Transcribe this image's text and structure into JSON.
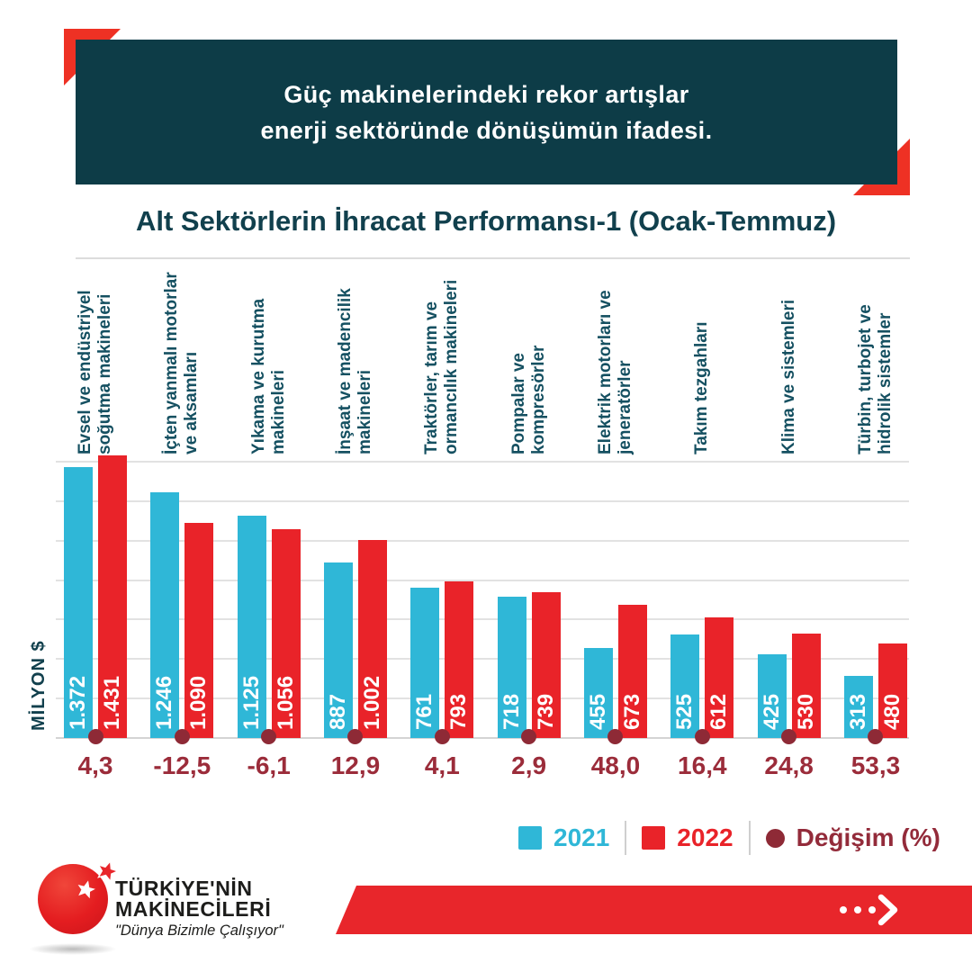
{
  "header": {
    "line1": "Güç makinelerindeki rekor artışlar",
    "line2": "enerji sektöründe dönüşümün ifadesi."
  },
  "chart_data": {
    "type": "bar",
    "title": "Alt Sektörlerin İhracat Performansı-1 (Ocak-Temmuz)",
    "ylabel": "MİLYON $",
    "ylim": [
      0,
      1400
    ],
    "grid_step": 200,
    "grid": true,
    "legend_position": "bottom-right",
    "categories": [
      [
        "Evsel ve endüstriyel",
        "soğutma makineleri"
      ],
      [
        "İçten yanmalı motorlar",
        "ve aksamları"
      ],
      [
        "Yıkama ve kurutma",
        "makineleri"
      ],
      [
        "İnşaat ve madencilik",
        "makineleri"
      ],
      [
        "Traktörler, tarım ve",
        "ormancılık makineleri"
      ],
      [
        "Pompalar ve",
        "kompresörler"
      ],
      [
        "Elektrik motorları ve",
        "jeneratörler"
      ],
      [
        "Takım tezgahları"
      ],
      [
        "Klima ve sistemleri"
      ],
      [
        "Türbin, turbojet ve",
        "hidrolik sistemler"
      ]
    ],
    "series": [
      {
        "name": "2021",
        "color": "#2fb7d7",
        "values": [
          1372,
          1246,
          1125,
          887,
          761,
          718,
          455,
          525,
          425,
          313
        ],
        "labels": [
          "1.372",
          "1.246",
          "1.125",
          "887",
          "761",
          "718",
          "455",
          "525",
          "425",
          "313"
        ]
      },
      {
        "name": "2022",
        "color": "#e92329",
        "values": [
          1431,
          1090,
          1056,
          1002,
          793,
          739,
          673,
          612,
          530,
          480
        ],
        "labels": [
          "1.431",
          "1.090",
          "1.056",
          "1.002",
          "793",
          "739",
          "673",
          "612",
          "530",
          "480"
        ]
      }
    ],
    "change_series": {
      "name": "Değişim (%)",
      "color": "#8e2a36",
      "values": [
        "4,3",
        "-12,5",
        "-6,1",
        "12,9",
        "4,1",
        "2,9",
        "48,0",
        "16,4",
        "24,8",
        "53,3"
      ]
    },
    "legend": [
      {
        "label": "2021",
        "marker": "square",
        "color": "#2fb7d7",
        "text_color": "#2fb7d7"
      },
      {
        "label": "2022",
        "marker": "square",
        "color": "#e92329",
        "text_color": "#e92329"
      },
      {
        "label": "Değişim (%)",
        "marker": "circle",
        "color": "#8e2a36",
        "text_color": "#932b3a"
      }
    ]
  },
  "footer": {
    "logo_line1": "TÜRKİYE'NİN",
    "logo_line2": "MAKİNECİLERİ",
    "tagline": "\"Dünya Bizimle Çalışıyor\""
  },
  "colors": {
    "header_bg": "#0d3c47",
    "accent_red": "#ee3124",
    "banner_red": "#e8262b",
    "grid": "#e2e2e2",
    "label_teal": "#155061",
    "change_maroon": "#8e2a36"
  }
}
